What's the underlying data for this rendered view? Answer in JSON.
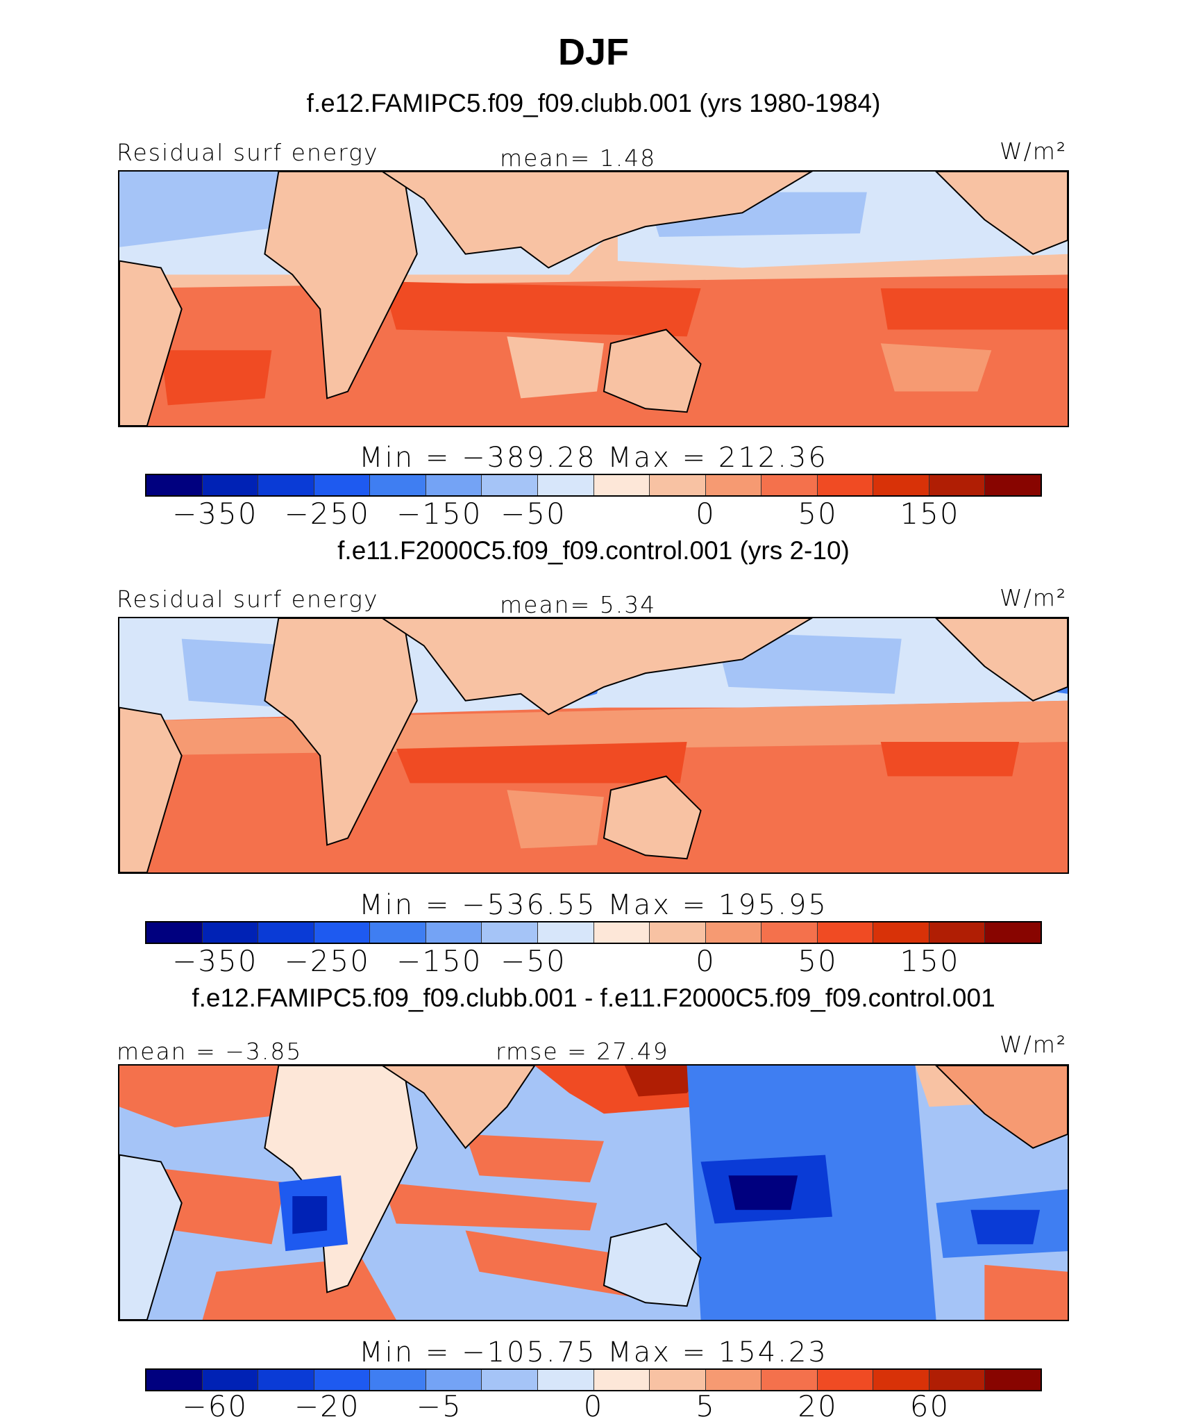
{
  "chart_data": {
    "type": "heatmap",
    "title": "DJF",
    "colors": [
      "#00007f",
      "#0022b5",
      "#0a3bd6",
      "#1e5af0",
      "#3f7ef2",
      "#74a3f5",
      "#a5c4f7",
      "#d7e6fa",
      "#fde7d8",
      "#f8c2a3",
      "#f69a72",
      "#f4714c",
      "#f04b23",
      "#d83208",
      "#b01e04",
      "#880500"
    ],
    "panels": [
      {
        "run_title": "f.e12.FAMIPC5.f09_f09.clubb.001 (yrs 1980-1984)",
        "left_label": "Residual surf energy",
        "center_label": "mean=   1.48",
        "units": "W/m²",
        "minmax": "Min = −389.28 Max = 212.36",
        "min": -389.28,
        "max": 212.36,
        "mean": 1.48,
        "tick_labels": [
          "−350",
          "−250",
          "−150",
          "−50",
          "0",
          "50",
          "150"
        ]
      },
      {
        "run_title": "f.e11.F2000C5.f09_f09.control.001 (yrs 2-10)",
        "left_label": "Residual surf energy",
        "center_label": "mean=   5.34",
        "units": "W/m²",
        "minmax": "Min = −536.55 Max = 195.95",
        "min": -536.55,
        "max": 195.95,
        "mean": 5.34,
        "tick_labels": [
          "−350",
          "−250",
          "−150",
          "−50",
          "0",
          "50",
          "150"
        ]
      },
      {
        "run_title": "f.e12.FAMIPC5.f09_f09.clubb.001 - f.e11.F2000C5.f09_f09.control.001",
        "left_label": "mean =  −3.85",
        "center_label": "rmse =  27.49",
        "units": "W/m²",
        "minmax": "Min = −105.75 Max = 154.23",
        "min": -105.75,
        "max": 154.23,
        "mean": -3.85,
        "rmse": 27.49,
        "tick_labels": [
          "−60",
          "−20",
          "−5",
          "0",
          "5",
          "20",
          "60"
        ]
      }
    ]
  }
}
